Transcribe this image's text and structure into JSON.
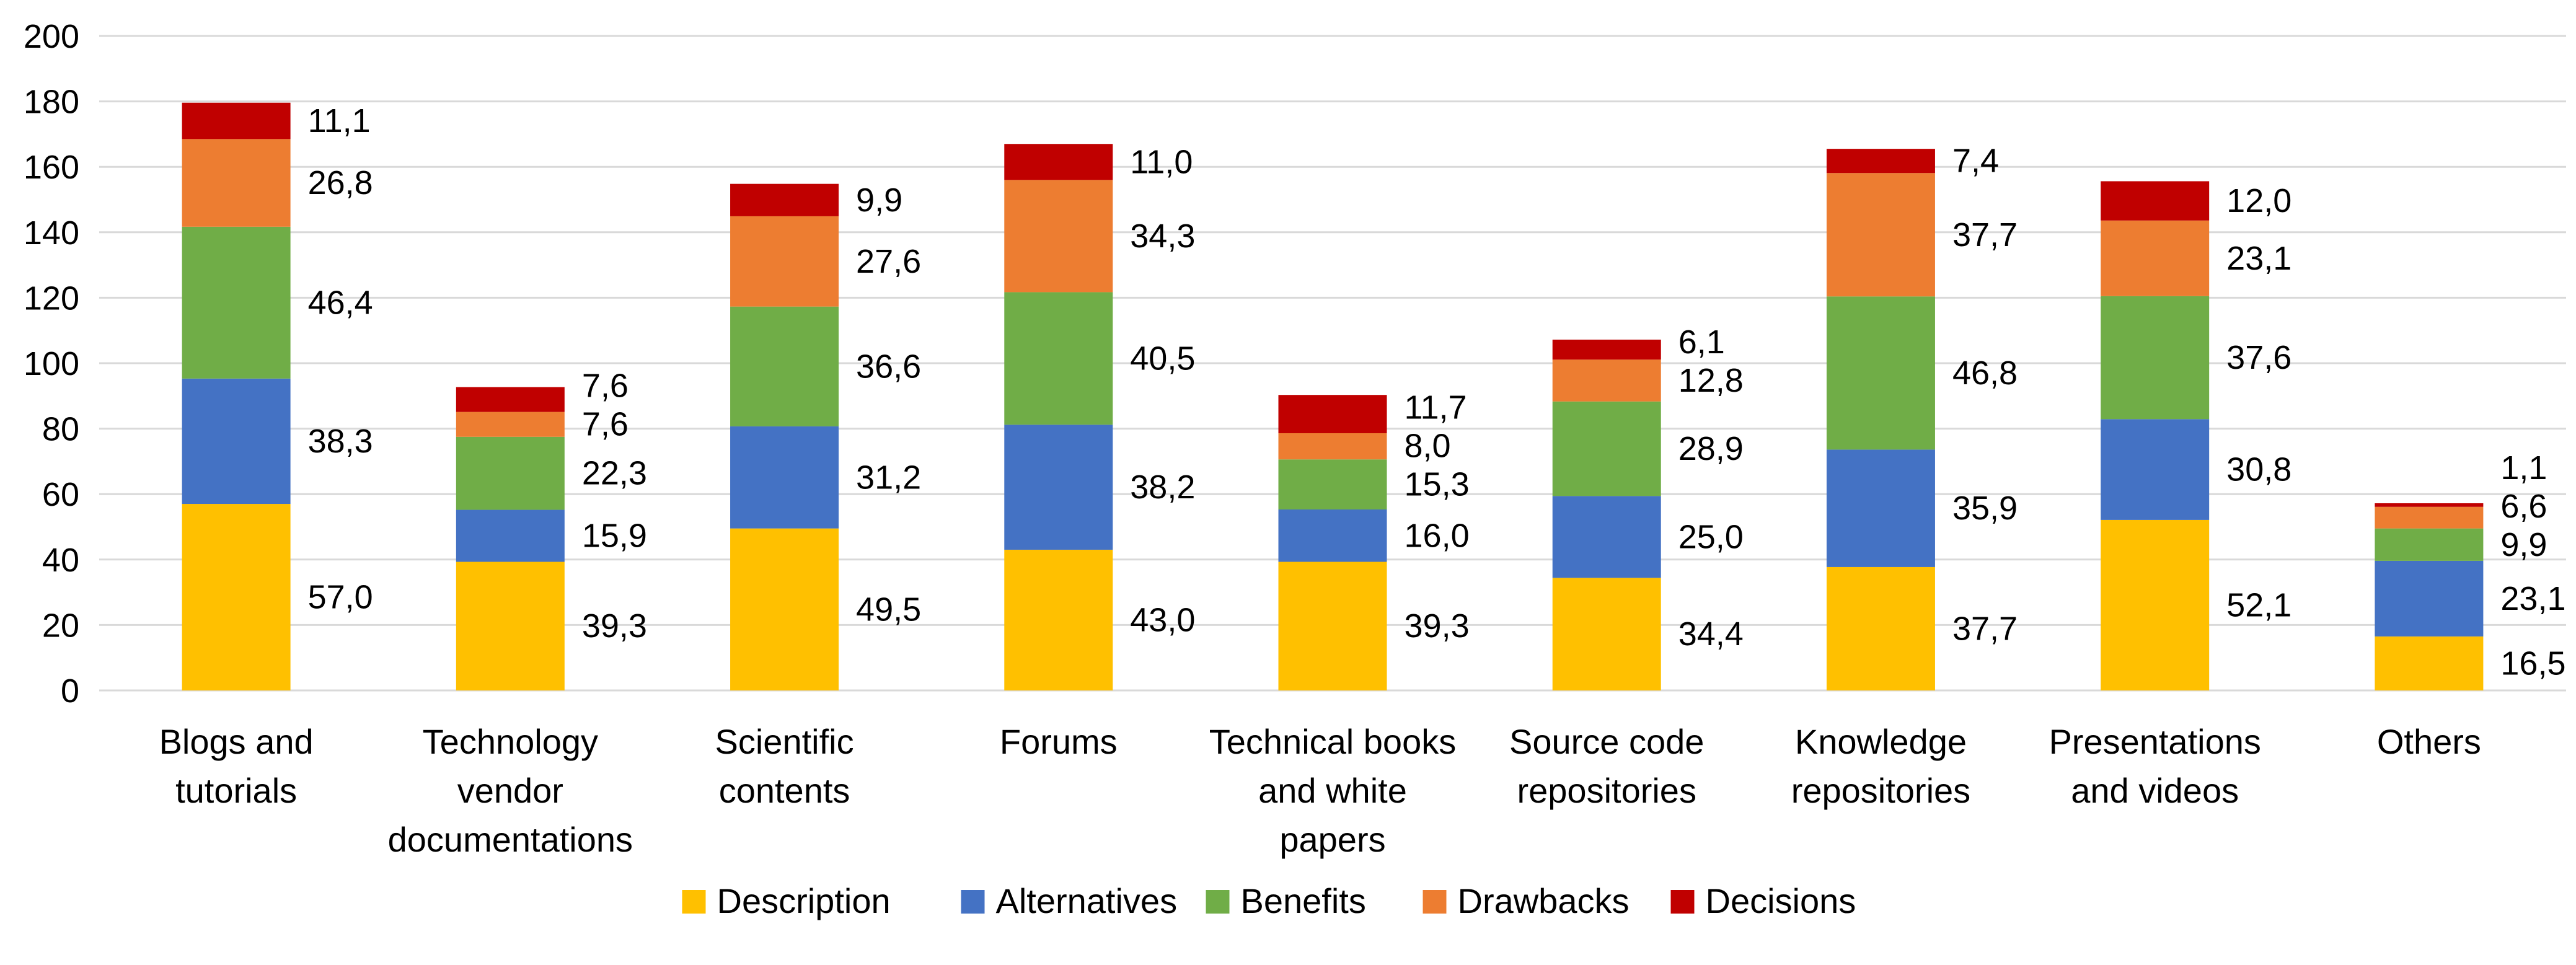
{
  "chart_data": {
    "type": "bar",
    "stacked": true,
    "title": "",
    "xlabel": "",
    "ylabel": "",
    "ylim": [
      0,
      200
    ],
    "yticks": [
      0,
      20,
      40,
      60,
      80,
      100,
      120,
      140,
      160,
      180,
      200
    ],
    "grid": true,
    "legend_position": "bottom",
    "categories": [
      [
        "Blogs and",
        "tutorials"
      ],
      [
        "Technology",
        "vendor",
        "documentations"
      ],
      [
        "Scientific",
        "contents"
      ],
      [
        "Forums"
      ],
      [
        "Technical books",
        "and white",
        "papers"
      ],
      [
        "Source code",
        "repositories"
      ],
      [
        "Knowledge",
        "repositories"
      ],
      [
        "Presentations",
        "and videos"
      ],
      [
        "Others"
      ]
    ],
    "series": [
      {
        "name": "Description",
        "color": "#FFC000",
        "values": [
          57.0,
          39.3,
          49.5,
          43.0,
          39.3,
          34.4,
          37.7,
          52.1,
          16.5
        ],
        "labels": [
          "57,0",
          "39,3",
          "49,5",
          "43,0",
          "39,3",
          "34,4",
          "37,7",
          "52,1",
          "16,5"
        ]
      },
      {
        "name": "Alternatives",
        "color": "#4472C4",
        "values": [
          38.3,
          15.9,
          31.2,
          38.2,
          16.0,
          25.0,
          35.9,
          30.8,
          23.1
        ],
        "labels": [
          "38,3",
          "15,9",
          "31,2",
          "38,2",
          "16,0",
          "25,0",
          "35,9",
          "30,8",
          "23,1"
        ]
      },
      {
        "name": "Benefits",
        "color": "#70AD47",
        "values": [
          46.4,
          22.3,
          36.6,
          40.5,
          15.3,
          28.9,
          46.8,
          37.6,
          9.9
        ],
        "labels": [
          "46,4",
          "22,3",
          "36,6",
          "40,5",
          "15,3",
          "28,9",
          "46,8",
          "37,6",
          "9,9"
        ]
      },
      {
        "name": "Drawbacks",
        "color": "#ED7D31",
        "values": [
          26.8,
          7.6,
          27.6,
          34.3,
          8.0,
          12.8,
          37.7,
          23.1,
          6.6
        ],
        "labels": [
          "26,8",
          "7,6",
          "27,6",
          "34,3",
          "8,0",
          "12,8",
          "37,7",
          "23,1",
          "6,6"
        ]
      },
      {
        "name": "Decisions",
        "color": "#C00000",
        "values": [
          11.1,
          7.6,
          9.9,
          11.0,
          11.7,
          6.1,
          7.4,
          12.0,
          1.1
        ],
        "labels": [
          "11,1",
          "7,6",
          "9,9",
          "11,0",
          "11,7",
          "6,1",
          "7,4",
          "12,0",
          "1,1"
        ]
      }
    ]
  }
}
